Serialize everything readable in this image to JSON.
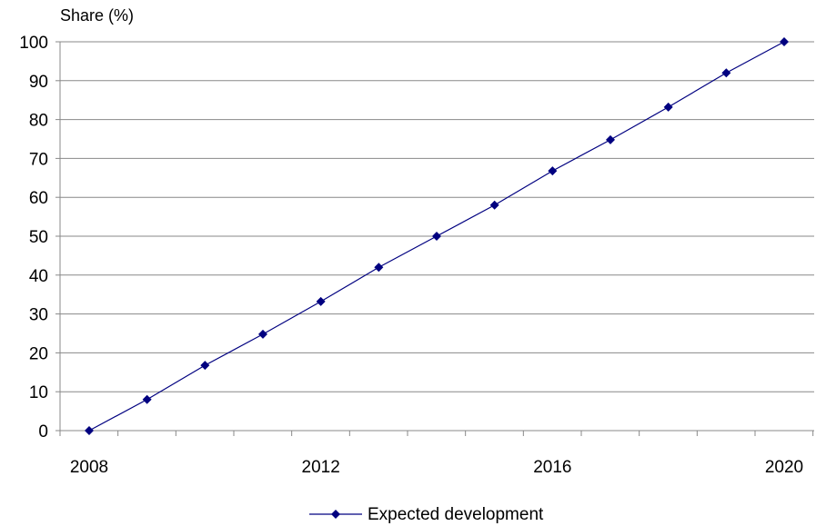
{
  "chart_data": {
    "type": "line",
    "ylabel": "Share (%)",
    "xlabel": "",
    "x": [
      2008,
      2009,
      2010,
      2011,
      2012,
      2013,
      2014,
      2015,
      2016,
      2017,
      2018,
      2019,
      2020
    ],
    "x_tick_labels": [
      "2008",
      "2012",
      "2016",
      "2020"
    ],
    "y_ticks": [
      "0",
      "10",
      "20",
      "30",
      "40",
      "50",
      "60",
      "70",
      "80",
      "90",
      "100"
    ],
    "ylim": [
      0,
      100
    ],
    "grid": "horizontal",
    "legend_position": "bottom-center",
    "series": [
      {
        "name": "Expected development",
        "color": "#000080",
        "marker": "diamond",
        "values": [
          0,
          8,
          16.8,
          24.8,
          33.2,
          42,
          50,
          58,
          66.8,
          74.8,
          83.2,
          92,
          100
        ]
      }
    ]
  }
}
